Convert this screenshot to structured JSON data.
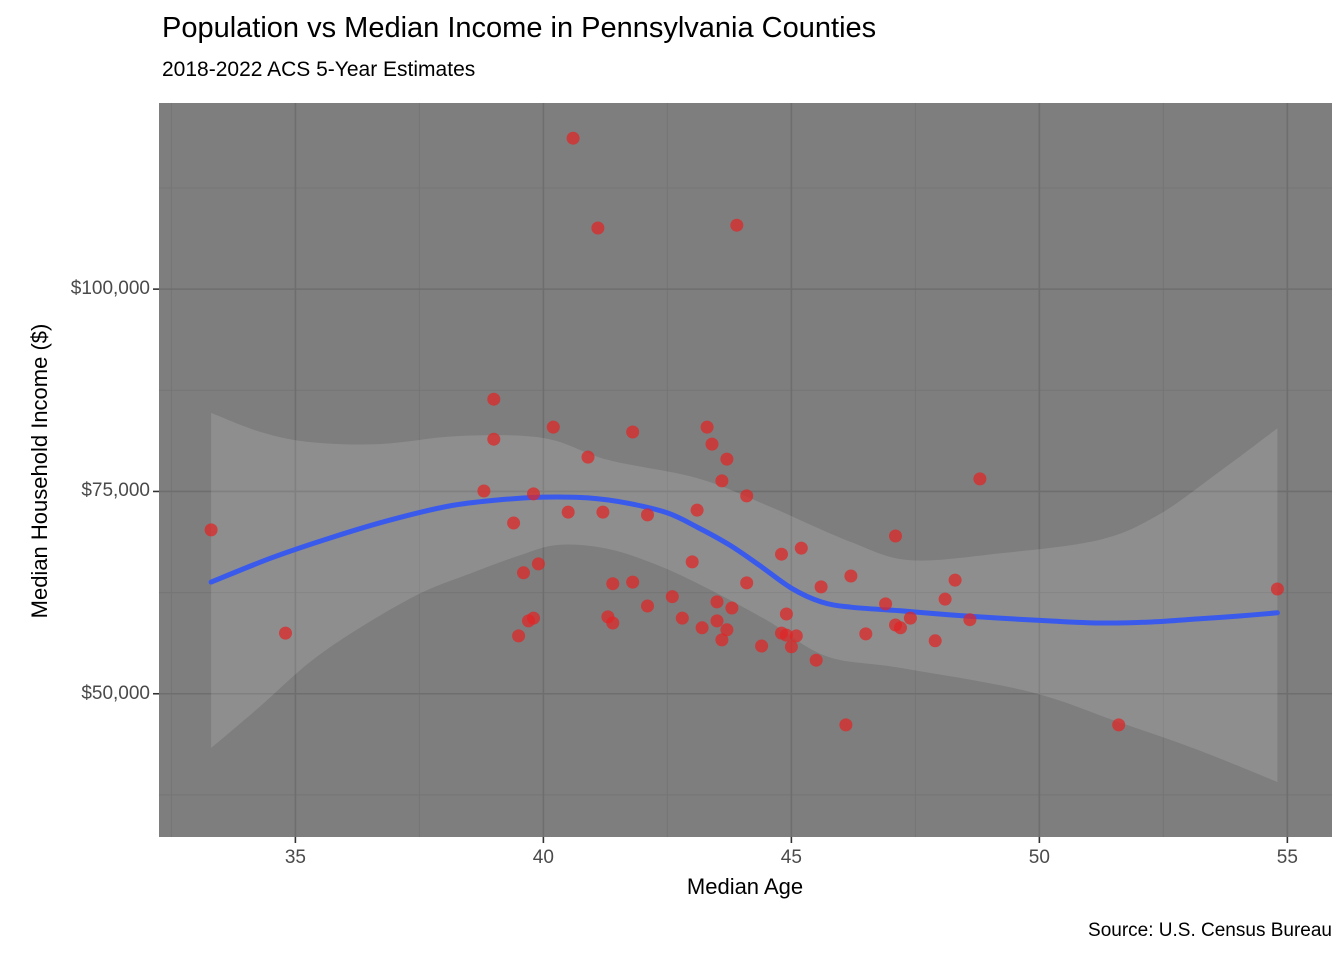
{
  "header": {
    "title": "Population vs Median Income in Pennsylvania Counties",
    "subtitle": "2018-2022 ACS 5-Year Estimates"
  },
  "caption": "Source: U.S. Census Bureau",
  "chart_data": {
    "type": "scatter",
    "title": "Population vs Median Income in Pennsylvania Counties",
    "subtitle": "2018-2022 ACS 5-Year Estimates",
    "xlabel": "Median Age",
    "ylabel": "Median Household Income ($)",
    "caption": "Source: U.S. Census Bureau",
    "legend": "none",
    "grid": true,
    "xlim": [
      32.25,
      55.9
    ],
    "ylim": [
      32300,
      123000
    ],
    "x_major_ticks": [
      {
        "value": 35,
        "label": "35"
      },
      {
        "value": 40,
        "label": "40"
      },
      {
        "value": 45,
        "label": "45"
      },
      {
        "value": 50,
        "label": "50"
      },
      {
        "value": 55,
        "label": "55"
      }
    ],
    "x_minor_ticks": [
      32.5,
      37.5,
      42.5,
      47.5,
      52.5
    ],
    "y_major_ticks": [
      {
        "value": 50000,
        "label": "$50,000"
      },
      {
        "value": 75000,
        "label": "$75,000"
      },
      {
        "value": 100000,
        "label": "$100,000"
      }
    ],
    "y_minor_ticks": [
      37500,
      62500,
      87500,
      112500
    ],
    "points": [
      [
        40.6,
        118650
      ],
      [
        41.1,
        107550
      ],
      [
        43.9,
        107900
      ],
      [
        39.0,
        86400
      ],
      [
        40.2,
        82950
      ],
      [
        41.8,
        82350
      ],
      [
        39.0,
        81450
      ],
      [
        40.9,
        79250
      ],
      [
        43.3,
        82950
      ],
      [
        43.4,
        80850
      ],
      [
        43.7,
        79000
      ],
      [
        43.6,
        76300
      ],
      [
        44.1,
        74450
      ],
      [
        38.8,
        75050
      ],
      [
        39.8,
        74700
      ],
      [
        40.5,
        72450
      ],
      [
        41.2,
        72450
      ],
      [
        42.1,
        72100
      ],
      [
        43.1,
        72700
      ],
      [
        39.4,
        71100
      ],
      [
        43.0,
        66300
      ],
      [
        39.9,
        66050
      ],
      [
        39.6,
        64950
      ],
      [
        41.4,
        63600
      ],
      [
        41.8,
        63800
      ],
      [
        42.6,
        62000
      ],
      [
        42.1,
        60850
      ],
      [
        41.3,
        59500
      ],
      [
        41.4,
        58750
      ],
      [
        39.7,
        59000
      ],
      [
        39.8,
        59350
      ],
      [
        39.5,
        57150
      ],
      [
        42.8,
        59350
      ],
      [
        44.1,
        63700
      ],
      [
        43.5,
        61350
      ],
      [
        43.8,
        60600
      ],
      [
        43.2,
        58150
      ],
      [
        43.5,
        59000
      ],
      [
        43.7,
        57900
      ],
      [
        43.6,
        56650
      ],
      [
        44.4,
        55900
      ],
      [
        33.3,
        70250
      ],
      [
        34.8,
        57500
      ],
      [
        48.8,
        76550
      ],
      [
        47.1,
        69500
      ],
      [
        45.2,
        68000
      ],
      [
        44.8,
        67250
      ],
      [
        46.2,
        64550
      ],
      [
        45.6,
        63200
      ],
      [
        46.9,
        61100
      ],
      [
        48.1,
        61700
      ],
      [
        48.3,
        64050
      ],
      [
        47.4,
        59350
      ],
      [
        47.1,
        58500
      ],
      [
        47.2,
        58150
      ],
      [
        44.9,
        59850
      ],
      [
        44.8,
        57500
      ],
      [
        44.9,
        57250
      ],
      [
        45.1,
        57150
      ],
      [
        45.0,
        55800
      ],
      [
        46.5,
        57400
      ],
      [
        47.9,
        56550
      ],
      [
        45.5,
        54150
      ],
      [
        46.1,
        46150
      ],
      [
        51.6,
        46150
      ],
      [
        54.8,
        62950
      ],
      [
        48.6,
        59150
      ]
    ],
    "smooth_line": [
      [
        33.3,
        63800
      ],
      [
        34.5,
        66750
      ],
      [
        35.7,
        69250
      ],
      [
        36.9,
        71450
      ],
      [
        38.1,
        73200
      ],
      [
        39.1,
        73950
      ],
      [
        40.0,
        74300
      ],
      [
        40.9,
        74200
      ],
      [
        41.7,
        73550
      ],
      [
        42.5,
        72350
      ],
      [
        43.1,
        70600
      ],
      [
        43.75,
        68400
      ],
      [
        44.35,
        65900
      ],
      [
        45.0,
        63050
      ],
      [
        45.6,
        61350
      ],
      [
        46.2,
        60700
      ],
      [
        47.2,
        60250
      ],
      [
        48.2,
        59750
      ],
      [
        49.2,
        59350
      ],
      [
        50.2,
        59000
      ],
      [
        51.2,
        58750
      ],
      [
        52.2,
        58850
      ],
      [
        53.2,
        59250
      ],
      [
        54.0,
        59600
      ],
      [
        54.8,
        60000
      ]
    ],
    "ci_band": {
      "upper": [
        [
          33.3,
          84700
        ],
        [
          34.3,
          82350
        ],
        [
          35.3,
          81100
        ],
        [
          36.7,
          80850
        ],
        [
          38.3,
          81850
        ],
        [
          40.0,
          81600
        ],
        [
          41.3,
          78900
        ],
        [
          43.1,
          76650
        ],
        [
          44.5,
          73300
        ],
        [
          46.2,
          68750
        ],
        [
          47.4,
          66500
        ],
        [
          49.2,
          67350
        ],
        [
          51.2,
          69000
        ],
        [
          52.4,
          72100
        ],
        [
          53.6,
          77300
        ],
        [
          54.8,
          82800
        ]
      ],
      "lower": [
        [
          33.3,
          43300
        ],
        [
          34.3,
          48500
        ],
        [
          35.3,
          53950
        ],
        [
          36.3,
          58150
        ],
        [
          37.5,
          62350
        ],
        [
          38.5,
          64800
        ],
        [
          39.5,
          67050
        ],
        [
          40.3,
          68400
        ],
        [
          41.3,
          67900
        ],
        [
          42.3,
          65900
        ],
        [
          43.3,
          63050
        ],
        [
          44.5,
          59100
        ],
        [
          45.7,
          54650
        ],
        [
          47.2,
          53200
        ],
        [
          49.8,
          50250
        ],
        [
          51.6,
          46500
        ],
        [
          53.2,
          43050
        ],
        [
          54.8,
          39100
        ]
      ]
    },
    "colors": {
      "panel_bg": "#7E7E7E",
      "grid_major": "#6E6E6E",
      "grid_minor": "#757575",
      "band_fill": "rgba(255,255,255,0.13)",
      "line": "#3A5AEC",
      "point": "#E12424",
      "tick_mark": "#333333",
      "tick_text": "#4A4A4A",
      "text": "#000000"
    }
  }
}
